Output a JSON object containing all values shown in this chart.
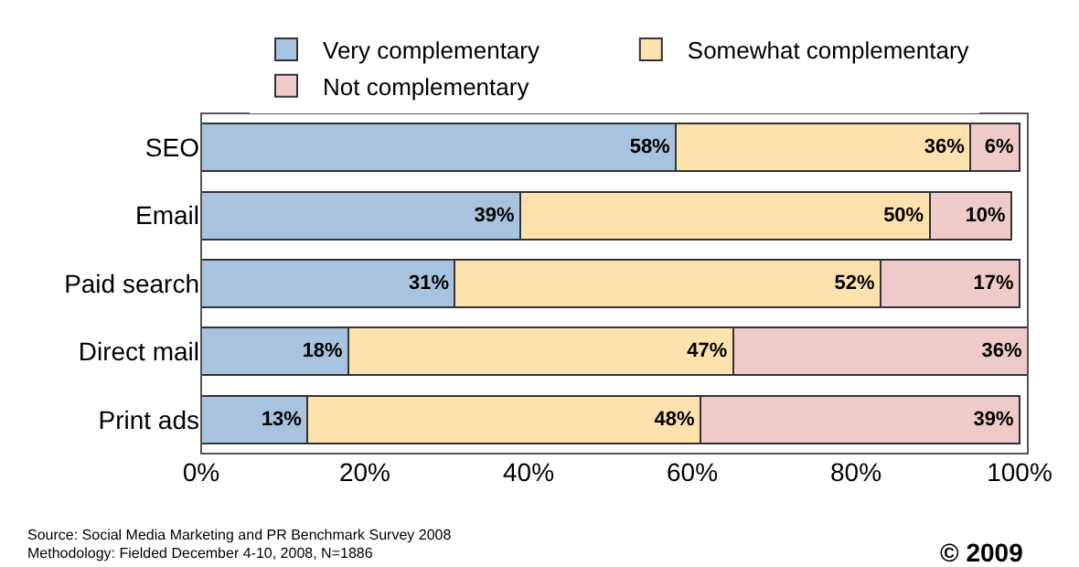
{
  "chart_data": {
    "type": "bar",
    "orientation": "horizontal",
    "stacked": true,
    "categories": [
      "SEO",
      "Email",
      "Paid search",
      "Direct mail",
      "Print ads"
    ],
    "series": [
      {
        "name": "Very complementary",
        "color": "#a7c3df",
        "values": [
          58,
          39,
          31,
          18,
          13
        ],
        "value_labels": [
          "58%",
          "39%",
          "31%",
          "18%",
          "13%"
        ]
      },
      {
        "name": "Somewhat complementary",
        "color": "#fde2ad",
        "values": [
          36,
          50,
          52,
          47,
          48
        ],
        "value_labels": [
          "36%",
          "50%",
          "52%",
          "47%",
          "48%"
        ]
      },
      {
        "name": "Not complementary",
        "color": "#efcaca",
        "values": [
          6,
          10,
          17,
          36,
          39
        ],
        "value_labels": [
          "6%",
          "10%",
          "17%",
          "36%",
          "39%"
        ]
      }
    ],
    "xlim": [
      0,
      101
    ],
    "xticks": [
      {
        "value": 0,
        "label": "0%"
      },
      {
        "value": 20,
        "label": "20%"
      },
      {
        "value": 40,
        "label": "40%"
      },
      {
        "value": 60,
        "label": "60%"
      },
      {
        "value": 80,
        "label": "80%"
      },
      {
        "value": 100,
        "label": "100%"
      }
    ],
    "legend": "top",
    "grid": false,
    "annotations": [
      "Source: Social Media Marketing and PR Benchmark Survey 2008",
      "Methodology: Fielded December 4-10, 2008, N=1886",
      "© 2009"
    ]
  }
}
